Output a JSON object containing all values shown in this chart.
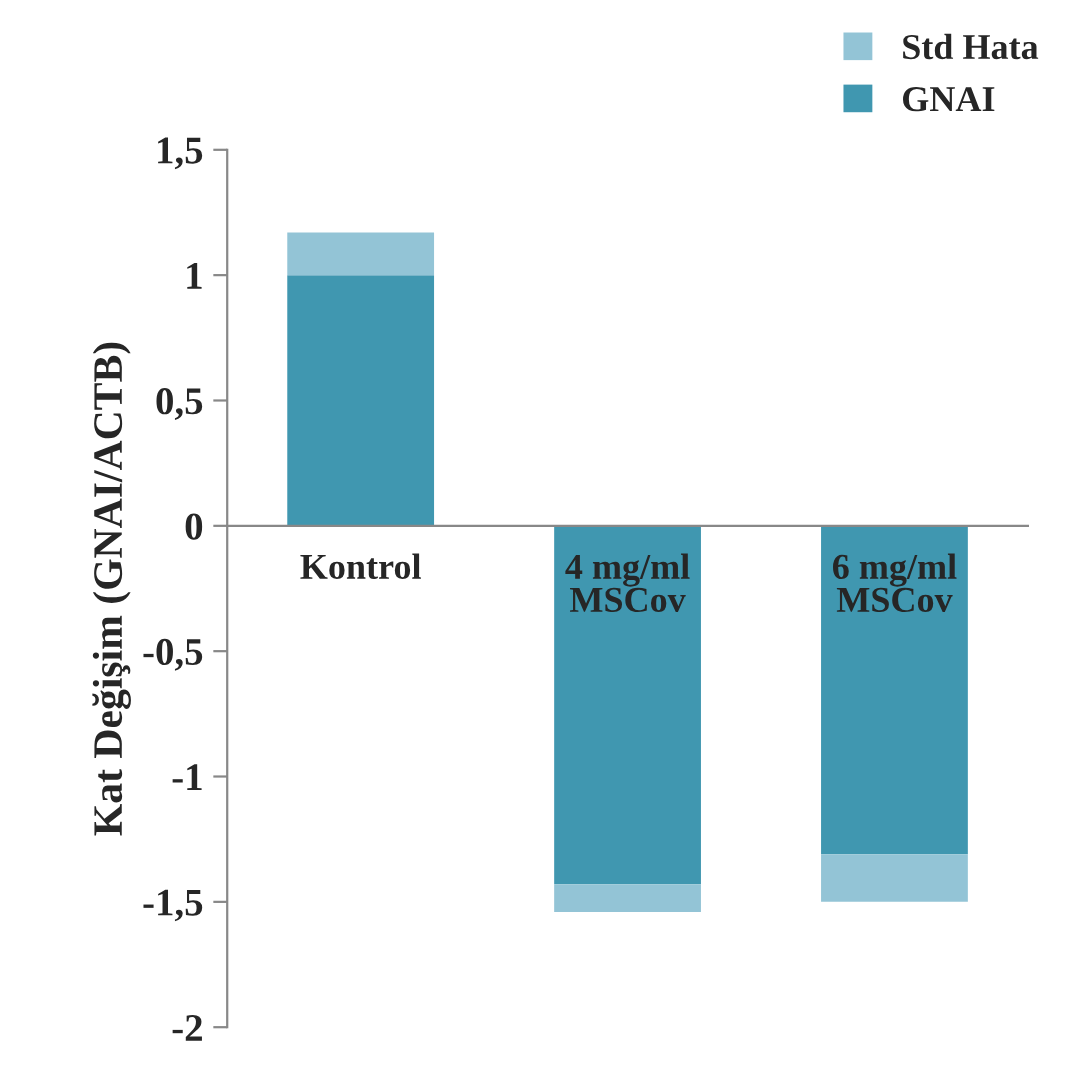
{
  "chart_data": {
    "type": "bar",
    "stacked": true,
    "ylabel": "Kat Değişim (GNAI/ACTB)",
    "categories": [
      "Kontrol",
      "4 mg/ml\nMSCov",
      "6 mg/ml\nMSCov"
    ],
    "series": [
      {
        "name": "GNAI",
        "color": "#4097b0",
        "values": [
          1.0,
          -1.43,
          -1.31
        ]
      },
      {
        "name": "Std Hata",
        "color": "#93c4d6",
        "values": [
          0.17,
          -0.11,
          -0.19
        ]
      }
    ],
    "ylim": [
      -2,
      1.5
    ],
    "yticks": [
      {
        "value": -2,
        "label": "-2"
      },
      {
        "value": -1.5,
        "label": "-1,5"
      },
      {
        "value": -1,
        "label": "-1"
      },
      {
        "value": -0.5,
        "label": "-0,5"
      },
      {
        "value": 0,
        "label": "0"
      },
      {
        "value": 0.5,
        "label": "0,5"
      },
      {
        "value": 1,
        "label": "1"
      },
      {
        "value": 1.5,
        "label": "1,5"
      }
    ],
    "grid": false,
    "legend": "top right"
  }
}
